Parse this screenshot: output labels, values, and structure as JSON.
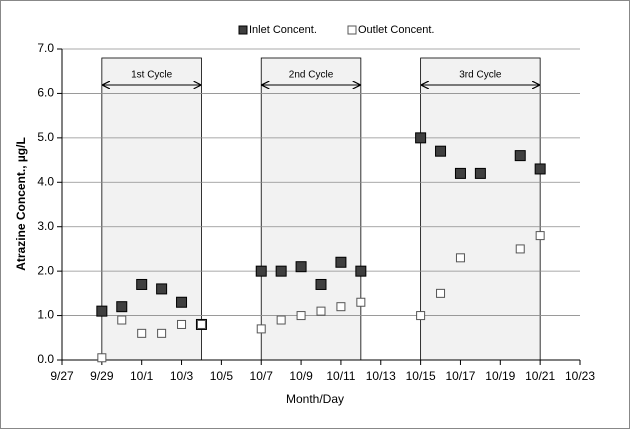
{
  "chart_data": {
    "type": "scatter",
    "x_label": "Month/Day",
    "y_label": "Atrazine Concent., µg/L",
    "xlim": [
      "9/27",
      "10/23"
    ],
    "xticks": [
      "9/27",
      "9/29",
      "10/1",
      "10/3",
      "10/5",
      "10/7",
      "10/9",
      "10/11",
      "10/13",
      "10/15",
      "10/17",
      "10/19",
      "10/21",
      "10/23"
    ],
    "ylim": [
      0,
      7
    ],
    "yticks": [
      {
        "value": 0,
        "label": "0.0"
      },
      {
        "value": 1,
        "label": "1.0"
      },
      {
        "value": 2,
        "label": "2.0"
      },
      {
        "value": 3,
        "label": "3.0"
      },
      {
        "value": 4,
        "label": "4.0"
      },
      {
        "value": 5,
        "label": "5.0"
      },
      {
        "value": 6,
        "label": "6.0"
      },
      {
        "value": 7,
        "label": "7.0"
      }
    ],
    "grid": true,
    "legend": "top",
    "cycles": [
      {
        "label": "1st Cycle",
        "start": "9/29",
        "end": "10/4"
      },
      {
        "label": "2nd Cycle",
        "start": "10/7",
        "end": "10/12"
      },
      {
        "label": "3rd Cycle",
        "start": "10/15",
        "end": "10/21"
      }
    ],
    "series": [
      {
        "name": "Inlet Concent.",
        "color": "#3f3f3f",
        "marker": "filled",
        "x": [
          "9/29",
          "9/30",
          "10/1",
          "10/2",
          "10/3",
          "10/4",
          "10/7",
          "10/8",
          "10/9",
          "10/10",
          "10/11",
          "10/12",
          "10/15",
          "10/16",
          "10/17",
          "10/18",
          "10/20",
          "10/21"
        ],
        "values": [
          1.1,
          1.2,
          1.7,
          1.6,
          1.3,
          0.8,
          2.0,
          2.0,
          2.1,
          1.7,
          2.2,
          2.0,
          5.0,
          4.7,
          4.2,
          4.2,
          4.6,
          4.3
        ]
      },
      {
        "name": "Outlet Concent.",
        "color": "#ffffff",
        "marker": "hollow",
        "x": [
          "9/29",
          "9/30",
          "10/1",
          "10/2",
          "10/3",
          "10/4",
          "10/7",
          "10/8",
          "10/9",
          "10/10",
          "10/11",
          "10/12",
          "10/15",
          "10/16",
          "10/17",
          "10/20",
          "10/21"
        ],
        "values": [
          0.05,
          0.9,
          0.6,
          0.6,
          0.8,
          0.8,
          0.7,
          0.9,
          1.0,
          1.1,
          1.2,
          1.3,
          1.0,
          1.5,
          2.3,
          2.5,
          2.8
        ]
      }
    ]
  }
}
